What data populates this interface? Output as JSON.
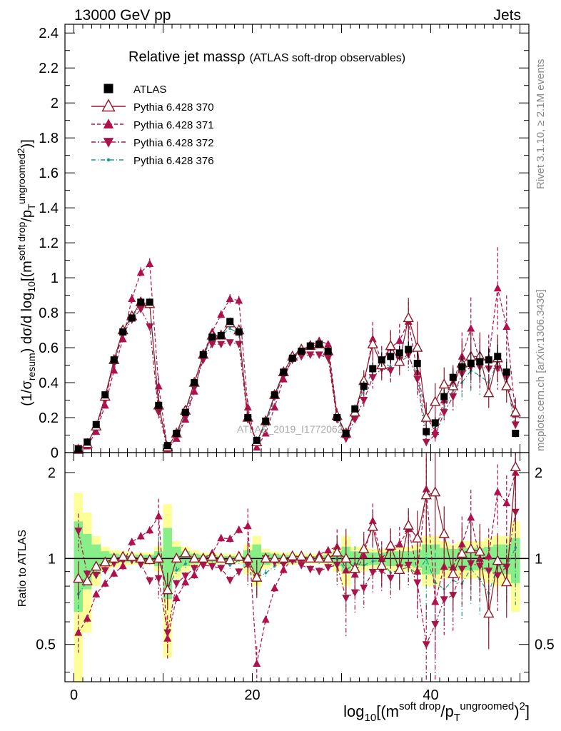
{
  "header": {
    "left": "13000 GeV pp",
    "right": "Jets",
    "title_main": "Relative jet massρ",
    "title_sub": "(ATLAS soft-drop observables)"
  },
  "side_text": {
    "top": "Rivet 3.1.10, ≥ 2.1M events",
    "bottom": "mcplots.cern.ch [arXiv:1306.3436]"
  },
  "watermark": "ATLAS_2019_I1772062",
  "colors": {
    "data": "#000000",
    "p370": "#8b1a2a",
    "p371": "#b0104d",
    "p372": "#a8154a",
    "p376": "#1a9a88",
    "band_yellow": "#ffff99",
    "band_green": "#88ee88"
  },
  "chart_data": {
    "type": "scatter",
    "main_ylabel": "(1/σresum) dσ/d log10[(m^soft drop/pT^ungroomed)^2]",
    "ratio_ylabel": "Ratio to ATLAS",
    "xlabel": "log10[(m^soft drop/pT^ungroomed)^2]",
    "xlim": [
      -1,
      51
    ],
    "ylim_main": [
      0,
      2.45
    ],
    "ylim_ratio": [
      0.37,
      2.35
    ],
    "ratio_log": true,
    "x_ticks": [
      "0",
      "20",
      "40"
    ],
    "y_ticks_main": [
      "0",
      "0.2",
      "0.4",
      "0.6",
      "0.8",
      "1",
      "1.2",
      "1.4",
      "1.6",
      "1.8",
      "2",
      "2.2",
      "2.4"
    ],
    "y_ticks_ratio": [
      "0.5",
      "1",
      "2"
    ],
    "x": [
      0.5,
      1.5,
      2.5,
      3.5,
      4.5,
      5.5,
      6.5,
      7.5,
      8.5,
      9.5,
      10.5,
      11.5,
      12.5,
      13.5,
      14.5,
      15.5,
      16.5,
      17.5,
      18.5,
      19.5,
      20.5,
      21.5,
      22.5,
      23.5,
      24.5,
      25.5,
      26.5,
      27.5,
      28.5,
      29.5,
      30.5,
      31.5,
      32.5,
      33.5,
      34.5,
      35.5,
      36.5,
      37.5,
      38.5,
      39.5,
      40.5,
      41.5,
      42.5,
      43.5,
      44.5,
      45.5,
      46.5,
      47.5,
      48.5,
      49.5
    ],
    "series": [
      {
        "name": "ATLAS",
        "values": [
          0.02,
          0.06,
          0.16,
          0.33,
          0.53,
          0.69,
          0.77,
          0.86,
          0.86,
          0.27,
          0.04,
          0.11,
          0.23,
          0.4,
          0.56,
          0.66,
          0.67,
          0.75,
          0.69,
          0.2,
          0.07,
          0.18,
          0.33,
          0.46,
          0.54,
          0.58,
          0.61,
          0.62,
          0.58,
          0.2,
          0.11,
          0.25,
          0.38,
          0.48,
          0.53,
          0.55,
          0.57,
          0.59,
          0.51,
          0.12,
          0.17,
          0.32,
          0.43,
          0.49,
          0.51,
          0.52,
          0.53,
          0.55,
          0.46,
          0.11
        ]
      },
      {
        "name": "Pythia 6.428 370",
        "values": [
          0.017,
          0.05,
          0.15,
          0.32,
          0.53,
          0.7,
          0.78,
          0.86,
          0.85,
          0.27,
          0.031,
          0.11,
          0.24,
          0.4,
          0.56,
          0.67,
          0.67,
          0.74,
          0.7,
          0.2,
          0.06,
          0.18,
          0.33,
          0.46,
          0.55,
          0.59,
          0.61,
          0.62,
          0.58,
          0.21,
          0.11,
          0.23,
          0.41,
          0.62,
          0.5,
          0.61,
          0.52,
          0.77,
          0.6,
          0.2,
          0.29,
          0.39,
          0.38,
          0.51,
          0.55,
          0.55,
          0.34,
          0.54,
          0.38,
          0.23
        ]
      },
      {
        "name": "Pythia 6.428 371",
        "values": [
          0.011,
          0.037,
          0.12,
          0.27,
          0.47,
          0.65,
          0.88,
          1.03,
          1.08,
          0.38,
          0.021,
          0.08,
          0.19,
          0.35,
          0.56,
          0.69,
          0.79,
          0.88,
          0.87,
          0.26,
          0.03,
          0.11,
          0.26,
          0.42,
          0.54,
          0.58,
          0.61,
          0.64,
          0.62,
          0.22,
          0.1,
          0.22,
          0.39,
          0.65,
          0.53,
          0.6,
          0.64,
          0.75,
          0.46,
          0.21,
          0.12,
          0.3,
          0.4,
          0.55,
          0.71,
          0.52,
          0.54,
          0.94,
          0.72,
          0.22
        ]
      },
      {
        "name": "Pythia 6.428 372",
        "values": [
          0.025,
          0.053,
          0.14,
          0.3,
          0.51,
          0.68,
          0.76,
          0.82,
          0.72,
          0.23,
          0.022,
          0.09,
          0.2,
          0.37,
          0.53,
          0.62,
          0.62,
          0.63,
          0.62,
          0.19,
          0.06,
          0.18,
          0.32,
          0.44,
          0.53,
          0.55,
          0.56,
          0.56,
          0.54,
          0.19,
          0.08,
          0.19,
          0.3,
          0.43,
          0.48,
          0.47,
          0.53,
          0.56,
          0.42,
          0.06,
          0.1,
          0.23,
          0.32,
          0.45,
          0.49,
          0.49,
          0.48,
          0.48,
          0.43,
          0.16
        ]
      },
      {
        "name": "Pythia 6.428 376",
        "values": [
          0.015,
          0.05,
          0.15,
          0.32,
          0.52,
          0.69,
          0.77,
          0.85,
          0.84,
          0.28,
          0.031,
          0.1,
          0.22,
          0.4,
          0.55,
          0.66,
          0.67,
          0.71,
          0.68,
          0.2,
          0.06,
          0.16,
          0.31,
          0.45,
          0.54,
          0.59,
          0.61,
          0.61,
          0.57,
          0.2,
          0.1,
          0.24,
          0.36,
          0.47,
          0.52,
          0.49,
          0.52,
          0.55,
          0.45,
          0.12,
          0.14,
          0.25,
          0.36,
          0.4,
          0.47,
          0.44,
          0.4,
          0.52,
          0.43,
          0.12
        ]
      }
    ],
    "band_yellow_rel": [
      0.7,
      0.45,
      0.2,
      0.1,
      0.07,
      0.06,
      0.05,
      0.05,
      0.05,
      0.1,
      0.55,
      0.15,
      0.1,
      0.07,
      0.05,
      0.05,
      0.04,
      0.04,
      0.04,
      0.12,
      0.2,
      0.08,
      0.06,
      0.05,
      0.05,
      0.04,
      0.04,
      0.04,
      0.05,
      0.1,
      0.2,
      0.1,
      0.1,
      0.08,
      0.08,
      0.1,
      0.1,
      0.1,
      0.12,
      0.2,
      0.2,
      0.15,
      0.12,
      0.15,
      0.15,
      0.15,
      0.18,
      0.2,
      0.2,
      0.35
    ],
    "band_green_rel": [
      0.35,
      0.22,
      0.12,
      0.06,
      0.04,
      0.03,
      0.03,
      0.03,
      0.03,
      0.06,
      0.28,
      0.1,
      0.06,
      0.04,
      0.03,
      0.03,
      0.02,
      0.02,
      0.02,
      0.07,
      0.12,
      0.05,
      0.04,
      0.03,
      0.03,
      0.02,
      0.02,
      0.02,
      0.03,
      0.06,
      0.1,
      0.06,
      0.06,
      0.05,
      0.05,
      0.06,
      0.06,
      0.06,
      0.07,
      0.12,
      0.12,
      0.09,
      0.08,
      0.09,
      0.09,
      0.09,
      0.1,
      0.12,
      0.12,
      0.18
    ]
  }
}
